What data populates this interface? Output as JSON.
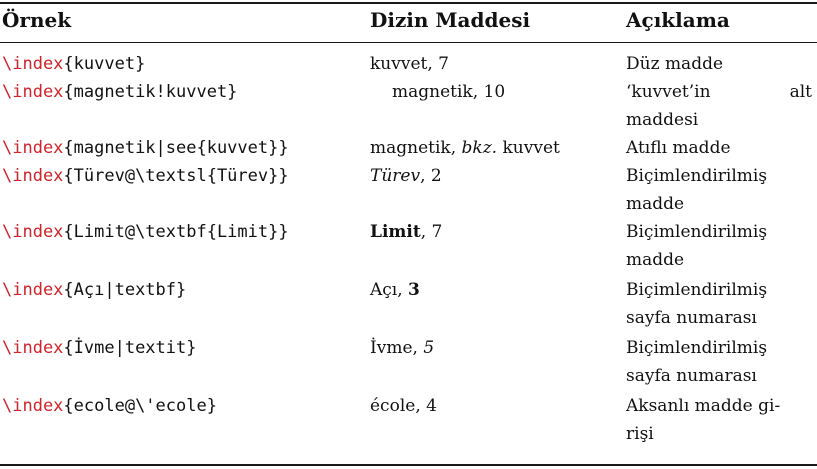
{
  "header": {
    "col1": "Örnek",
    "col2": "Dizin Maddesi",
    "col3": "Açıklama"
  },
  "rows": [
    {
      "cmd": "\\index",
      "arg": "{kuvvet}",
      "entry": [
        "kuvvet, 7"
      ],
      "desc": [
        "Düz madde"
      ]
    },
    {
      "cmd": "\\index",
      "arg": "{magnetik!kuvvet}",
      "entry": [
        "magnetik, 10"
      ],
      "desc_first": [
        "‘kuvvet’in",
        "alt"
      ],
      "desc": [
        "maddesi"
      ]
    },
    {
      "cmd": "\\index",
      "arg": "{magnetik|see{kuvvet}}",
      "entry": [
        "magnetik, ",
        "bkz.",
        " kuvvet"
      ],
      "desc": [
        "Atıflı madde"
      ]
    },
    {
      "cmd": "\\index",
      "arg": "{Türev@\\textsl{Türev}}",
      "entry": [
        "Türev",
        ", 2"
      ],
      "desc": [
        "Biçimlendirilmiş",
        "madde"
      ]
    },
    {
      "cmd": "\\index",
      "arg": "{Limit@\\textbf{Limit}}",
      "entry": [
        "Limit",
        ", 7"
      ],
      "desc": [
        "Biçimlendirilmiş",
        "madde"
      ]
    },
    {
      "cmd": "\\index",
      "arg": "{Açı|textbf}",
      "entry": [
        "Açı, ",
        "3"
      ],
      "desc": [
        "Biçimlendirilmiş",
        "sayfa numarası"
      ]
    },
    {
      "cmd": "\\index",
      "arg": "{İvme|textit}",
      "entry": [
        "İvme, ",
        "5"
      ],
      "desc": [
        "Biçimlendirilmiş",
        "sayfa numarası"
      ]
    },
    {
      "cmd": "\\index",
      "arg": "{ecole@\\'ecole}",
      "entry": [
        "école, 4"
      ],
      "desc": [
        "Aksanlı madde gi-",
        "rişi"
      ]
    }
  ],
  "colors": {
    "command": "#d2232a",
    "text": "#111111"
  }
}
